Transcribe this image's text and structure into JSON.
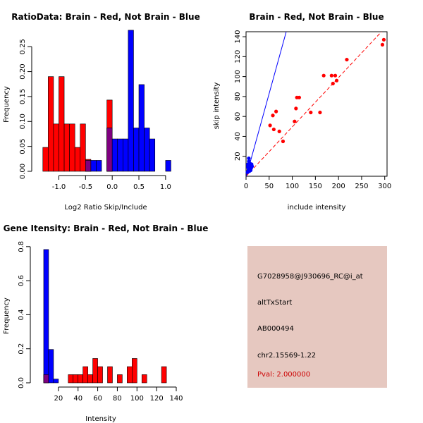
{
  "colors": {
    "red": "#ff0000",
    "blue": "#0000ff",
    "purple": "#7f007f",
    "info_bg": "#e6c8c0",
    "pval": "#cc0000"
  },
  "chart_data": [
    {
      "type": "bar",
      "title": "RatioData: Brain - Red, Not Brain - Blue",
      "xlabel": "Log2 Ratio Skip/Include",
      "ylabel": "Frequency",
      "xlim": [
        -1.35,
        1.2
      ],
      "ylim": [
        0,
        0.28
      ],
      "xticks": [
        -1.0,
        -0.5,
        0.0,
        0.5,
        1.0
      ],
      "xtick_labels": [
        "-1.0",
        "-0.5",
        "0.0",
        "0.5",
        "1.0"
      ],
      "yticks": [
        0.0,
        0.05,
        0.1,
        0.15,
        0.2,
        0.25
      ],
      "ytick_labels": [
        "0.00",
        "0.05",
        "0.10",
        "0.15",
        "0.20",
        "0.25"
      ],
      "bin_width": 0.1,
      "series": [
        {
          "name": "Brain",
          "color": "red",
          "bins": [
            {
              "x0": -1.3,
              "v": 0.048
            },
            {
              "x0": -1.2,
              "v": 0.19
            },
            {
              "x0": -1.1,
              "v": 0.095
            },
            {
              "x0": -1.0,
              "v": 0.19
            },
            {
              "x0": -0.9,
              "v": 0.095
            },
            {
              "x0": -0.8,
              "v": 0.095
            },
            {
              "x0": -0.7,
              "v": 0.048
            },
            {
              "x0": -0.6,
              "v": 0.095
            },
            {
              "x0": -0.5,
              "v": 0.024
            },
            {
              "x0": -0.1,
              "v": 0.143
            }
          ]
        },
        {
          "name": "Not Brain",
          "color": "blue",
          "bins": [
            {
              "x0": -0.5,
              "v": 0.022
            },
            {
              "x0": -0.4,
              "v": 0.022
            },
            {
              "x0": -0.3,
              "v": 0.022
            },
            {
              "x0": -0.1,
              "v": 0.087
            },
            {
              "x0": 0.0,
              "v": 0.065
            },
            {
              "x0": 0.1,
              "v": 0.065
            },
            {
              "x0": 0.2,
              "v": 0.065
            },
            {
              "x0": 0.3,
              "v": 0.283
            },
            {
              "x0": 0.4,
              "v": 0.087
            },
            {
              "x0": 0.5,
              "v": 0.174
            },
            {
              "x0": 0.6,
              "v": 0.087
            },
            {
              "x0": 0.7,
              "v": 0.065
            },
            {
              "x0": 1.0,
              "v": 0.022
            }
          ]
        }
      ]
    },
    {
      "type": "scatter",
      "title": "Brain - Red, Not Brain - Blue",
      "xlabel": "include intensity",
      "ylabel": "skip intensity",
      "xlim": [
        0,
        305
      ],
      "ylim": [
        0,
        145
      ],
      "xticks": [
        0,
        50,
        100,
        150,
        200,
        250,
        300
      ],
      "yticks": [
        20,
        40,
        60,
        80,
        100,
        120,
        140
      ],
      "series": [
        {
          "name": "Brain",
          "color": "red",
          "points": [
            [
              52,
              51
            ],
            [
              58,
              61
            ],
            [
              60,
              47
            ],
            [
              65,
              65
            ],
            [
              72,
              45
            ],
            [
              80,
              35
            ],
            [
              105,
              55
            ],
            [
              108,
              68
            ],
            [
              110,
              79
            ],
            [
              115,
              79
            ],
            [
              140,
              64
            ],
            [
              160,
              64
            ],
            [
              168,
              101
            ],
            [
              185,
              101
            ],
            [
              188,
              93
            ],
            [
              193,
              101
            ],
            [
              196,
              96
            ],
            [
              218,
              117
            ],
            [
              295,
              132
            ],
            [
              298,
              137
            ]
          ]
        },
        {
          "name": "Not Brain",
          "color": "blue",
          "points": [
            [
              3,
              4
            ],
            [
              4,
              9
            ],
            [
              4,
              12
            ],
            [
              5,
              6
            ],
            [
              5,
              10
            ],
            [
              6,
              18
            ],
            [
              6,
              8
            ],
            [
              7,
              5
            ],
            [
              7,
              11
            ],
            [
              8,
              7
            ],
            [
              8,
              13
            ],
            [
              9,
              9
            ],
            [
              10,
              6
            ],
            [
              10,
              11
            ],
            [
              11,
              8
            ],
            [
              12,
              12
            ],
            [
              13,
              10
            ],
            [
              6,
              15
            ]
          ]
        }
      ],
      "fit_lines": [
        {
          "name": "Brain fit",
          "color": "red",
          "dashed": true,
          "slope": 0.495,
          "intercept": 0
        },
        {
          "name": "Not Brain fit",
          "color": "blue",
          "dashed": false,
          "slope": 1.68,
          "intercept": -1
        }
      ]
    },
    {
      "type": "bar",
      "title": "Gene Itensity: Brain - Red, Not Brain - Blue",
      "xlabel": "Intensity",
      "ylabel": "Frequency",
      "xlim": [
        0,
        140
      ],
      "ylim": [
        0,
        0.82
      ],
      "xticks": [
        20,
        40,
        60,
        80,
        100,
        120,
        140
      ],
      "xtick_labels": [
        "20",
        "40",
        "60",
        "80",
        "100",
        "120",
        "140"
      ],
      "yticks": [
        0.0,
        0.2,
        0.4,
        0.6,
        0.8
      ],
      "ytick_labels": [
        "0.0",
        "0.2",
        "0.4",
        "0.6",
        "0.8"
      ],
      "bin_width": 5,
      "series": [
        {
          "name": "Brain",
          "color": "red",
          "bins": [
            {
              "x0": 5,
              "v": 0.048
            },
            {
              "x0": 30,
              "v": 0.048
            },
            {
              "x0": 35,
              "v": 0.048
            },
            {
              "x0": 40,
              "v": 0.048
            },
            {
              "x0": 45,
              "v": 0.095
            },
            {
              "x0": 50,
              "v": 0.048
            },
            {
              "x0": 55,
              "v": 0.143
            },
            {
              "x0": 60,
              "v": 0.095
            },
            {
              "x0": 70,
              "v": 0.095
            },
            {
              "x0": 80,
              "v": 0.048
            },
            {
              "x0": 90,
              "v": 0.095
            },
            {
              "x0": 95,
              "v": 0.143
            },
            {
              "x0": 105,
              "v": 0.048
            },
            {
              "x0": 125,
              "v": 0.095
            }
          ]
        },
        {
          "name": "Not Brain",
          "color": "blue",
          "bins": [
            {
              "x0": 5,
              "v": 0.783
            },
            {
              "x0": 10,
              "v": 0.196
            },
            {
              "x0": 15,
              "v": 0.022
            }
          ]
        }
      ]
    }
  ],
  "info": {
    "probe_id": "G7028958@J930696_RC@i_at",
    "event_type": "altTxStart",
    "accession": "AB000494",
    "location": "chr2.15569-1.22",
    "pval": "Pval: 2.000000"
  }
}
